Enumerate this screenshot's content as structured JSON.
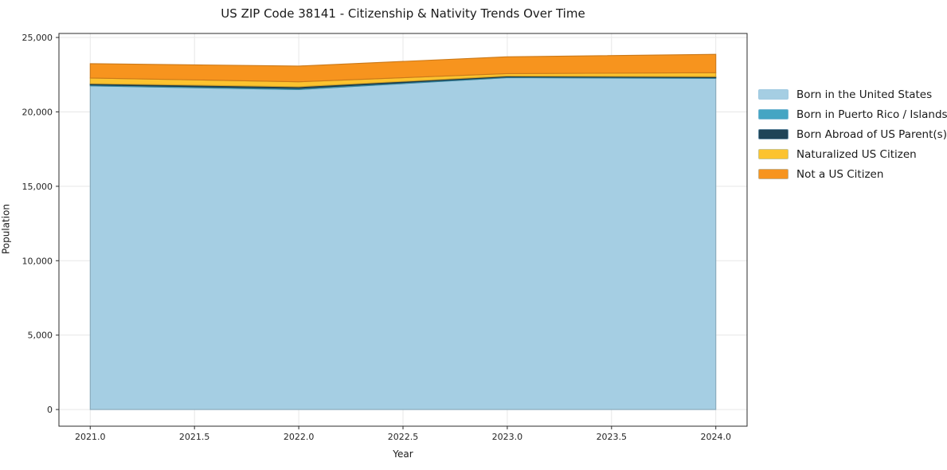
{
  "chart_data": {
    "type": "area",
    "stacked": true,
    "title": "US ZIP Code 38141 - Citizenship & Nativity Trends Over Time",
    "xlabel": "Year",
    "ylabel": "Population",
    "x": [
      2021,
      2022,
      2023,
      2024
    ],
    "series": [
      {
        "name": "Born in the United States",
        "values": [
          21750,
          21500,
          22300,
          22250
        ]
      },
      {
        "name": "Born in Puerto Rico / Islands",
        "values": [
          60,
          80,
          50,
          50
        ]
      },
      {
        "name": "Born Abroad of US Parent(s)",
        "values": [
          90,
          110,
          60,
          70
        ]
      },
      {
        "name": "Naturalized US Citizen",
        "values": [
          380,
          330,
          160,
          260
        ]
      },
      {
        "name": "Not a US Citizen",
        "values": [
          960,
          1060,
          1130,
          1240
        ]
      }
    ],
    "colors": [
      "#a5cee3",
      "#45a5c3",
      "#1f4457",
      "#fcc32f",
      "#f7941e"
    ],
    "xticks": [
      2021.0,
      2021.5,
      2022.0,
      2022.5,
      2023.0,
      2023.5,
      2024.0
    ],
    "yticks": [
      0,
      5000,
      10000,
      15000,
      20000,
      25000
    ],
    "xlim": [
      2020.85,
      2024.15
    ],
    "ylim": [
      -1120,
      25270
    ],
    "grid": true,
    "legend_position": "right-outside"
  }
}
